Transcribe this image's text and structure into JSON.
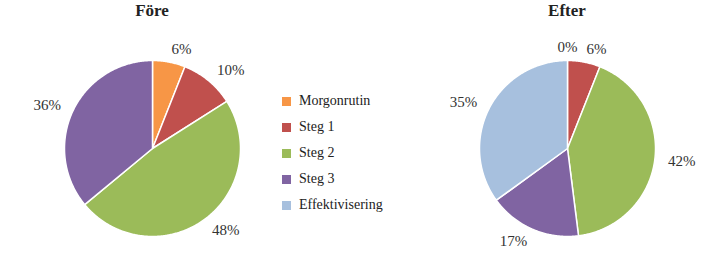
{
  "chart_data": [
    {
      "type": "pie",
      "title": "Före",
      "categories": [
        "Morgonrutin",
        "Steg 1",
        "Steg 2",
        "Steg 3"
      ],
      "values": [
        6,
        10,
        48,
        36
      ],
      "value_labels": [
        "6%",
        "10%",
        "48%",
        "36%"
      ],
      "colors": [
        "#f79646",
        "#c0504d",
        "#9bbb59",
        "#8064a2"
      ],
      "data_labels": true,
      "legend": "right"
    },
    {
      "type": "pie",
      "title": "Efter",
      "categories": [
        "Morgonrutin",
        "Steg 1",
        "Steg 2",
        "Steg 3",
        "Effektivisering"
      ],
      "values": [
        0,
        6,
        42,
        17,
        35
      ],
      "value_labels": [
        "0%",
        "6%",
        "42%",
        "17%",
        "35%"
      ],
      "colors": [
        "#f79646",
        "#c0504d",
        "#9bbb59",
        "#8064a2",
        "#a7c0de"
      ],
      "data_labels": true
    }
  ]
}
